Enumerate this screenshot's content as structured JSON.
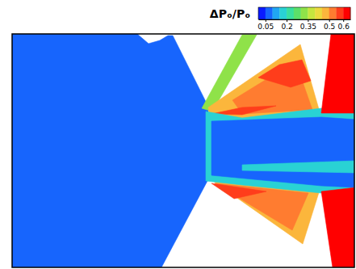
{
  "chart_data": {
    "type": "contour",
    "title": "ΔPₒ/Pₒ",
    "colorbar": {
      "range": [
        0,
        0.65
      ],
      "ticks": [
        0.05,
        0.2,
        0.35,
        0.5,
        0.6
      ]
    },
    "region_values": [
      0.05,
      0.3,
      0.45,
      0.5,
      0.55,
      0.55,
      0.45,
      0.5,
      0.55,
      0.15,
      0.05,
      0.15,
      0.62,
      0.62
    ]
  }
}
